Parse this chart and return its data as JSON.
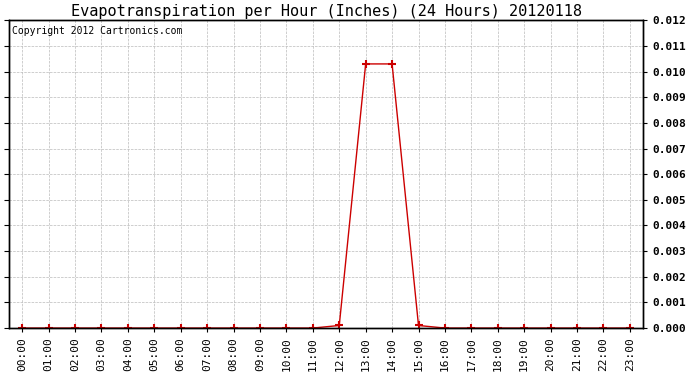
{
  "title": "Evapotranspiration per Hour (Inches) (24 Hours) 20120118",
  "copyright_text": "Copyright 2012 Cartronics.com",
  "hours": [
    "00:00",
    "01:00",
    "02:00",
    "03:00",
    "04:00",
    "05:00",
    "06:00",
    "07:00",
    "08:00",
    "09:00",
    "10:00",
    "11:00",
    "12:00",
    "13:00",
    "14:00",
    "15:00",
    "16:00",
    "17:00",
    "18:00",
    "19:00",
    "20:00",
    "21:00",
    "22:00",
    "23:00"
  ],
  "values": [
    0.0,
    0.0,
    0.0,
    0.0,
    0.0,
    0.0,
    0.0,
    0.0,
    0.0,
    0.0,
    0.0,
    0.0,
    0.0001,
    0.0103,
    0.0103,
    0.0001,
    0.0,
    0.0,
    0.0,
    0.0,
    0.0,
    0.0,
    0.0,
    0.0
  ],
  "line_color": "#cc0000",
  "marker": "+",
  "marker_size": 6,
  "marker_color": "#cc0000",
  "ylim": [
    0.0,
    0.012
  ],
  "yticks": [
    0.0,
    0.001,
    0.002,
    0.003,
    0.004,
    0.005,
    0.006,
    0.007,
    0.008,
    0.009,
    0.01,
    0.011,
    0.012
  ],
  "background_color": "#ffffff",
  "grid_color": "#bbbbbb",
  "title_fontsize": 11,
  "copyright_fontsize": 7,
  "tick_fontsize": 8,
  "border_color": "#000000"
}
